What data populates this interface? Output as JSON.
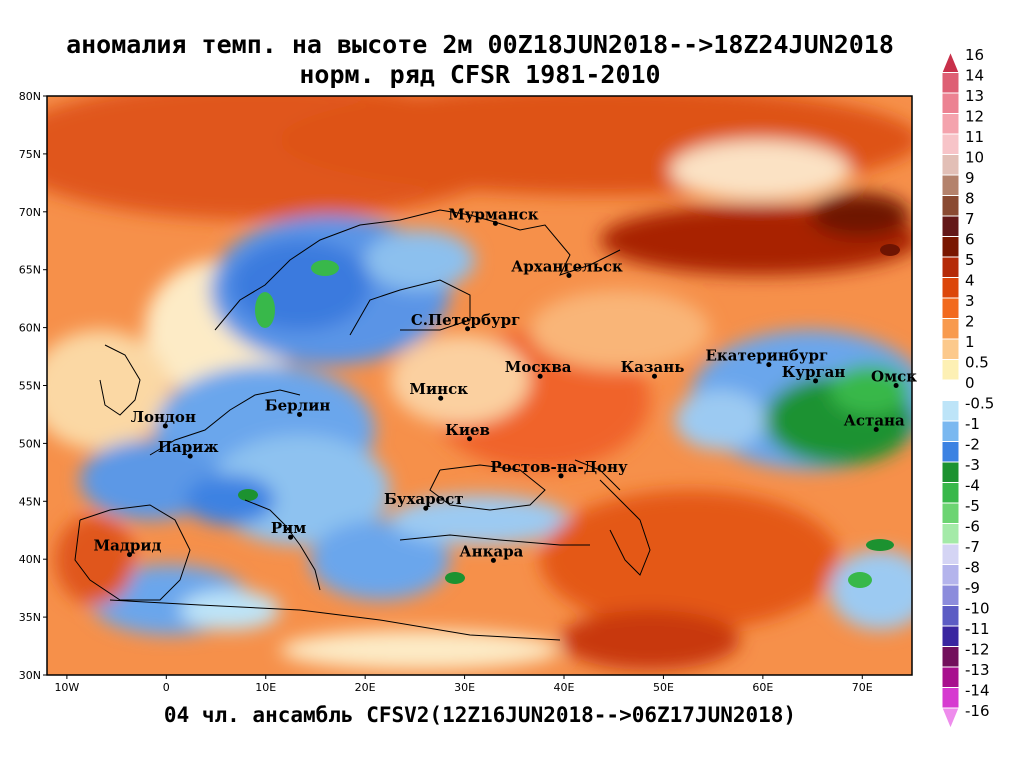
{
  "title_line1": "аномалия темп. на высоте 2м 00Z18JUN2018-->18Z24JUN2018",
  "title_line2": "норм. ряд CFSR 1981-2010",
  "footer": "04 чл. ансамбль CFSV2(12Z16JUN2018-->06Z17JUN2018)",
  "map": {
    "lon_range": [
      -12,
      75
    ],
    "lat_range": [
      30,
      80
    ],
    "lat_ticks": [
      "30N",
      "35N",
      "40N",
      "45N",
      "50N",
      "55N",
      "60N",
      "65N",
      "70N",
      "75N",
      "80N"
    ],
    "lon_ticks": [
      "10W",
      "0",
      "10E",
      "20E",
      "30E",
      "40E",
      "50E",
      "60E",
      "70E"
    ]
  },
  "cities": [
    {
      "name": "Мурманск",
      "lon": 33.1,
      "lat": 69.0
    },
    {
      "name": "Архангельск",
      "lon": 40.5,
      "lat": 64.5
    },
    {
      "name": "С.Петербург",
      "lon": 30.3,
      "lat": 59.9
    },
    {
      "name": "Москва",
      "lon": 37.6,
      "lat": 55.8
    },
    {
      "name": "Казань",
      "lon": 49.1,
      "lat": 55.8
    },
    {
      "name": "Екатеринбург",
      "lon": 60.6,
      "lat": 56.8
    },
    {
      "name": "Курган",
      "lon": 65.3,
      "lat": 55.4
    },
    {
      "name": "Омск",
      "lon": 73.4,
      "lat": 55.0
    },
    {
      "name": "Астана",
      "lon": 71.4,
      "lat": 51.2
    },
    {
      "name": "Минск",
      "lon": 27.6,
      "lat": 53.9
    },
    {
      "name": "Берлин",
      "lon": 13.4,
      "lat": 52.5
    },
    {
      "name": "Лондон",
      "lon": -0.1,
      "lat": 51.5
    },
    {
      "name": "Париж",
      "lon": 2.4,
      "lat": 48.9
    },
    {
      "name": "Киев",
      "lon": 30.5,
      "lat": 50.4
    },
    {
      "name": "Ростов-на-Дону",
      "lon": 39.7,
      "lat": 47.2
    },
    {
      "name": "Бухарест",
      "lon": 26.1,
      "lat": 44.4
    },
    {
      "name": "Рим",
      "lon": 12.5,
      "lat": 41.9
    },
    {
      "name": "Мадрид",
      "lon": -3.7,
      "lat": 40.4
    },
    {
      "name": "Анкара",
      "lon": 32.9,
      "lat": 39.9
    }
  ],
  "legend": {
    "levels": [
      "16",
      "14",
      "13",
      "12",
      "11",
      "10",
      "9",
      "8",
      "7",
      "6",
      "5",
      "4",
      "3",
      "2",
      "1",
      "0.5",
      "0",
      "-0.5",
      "-1",
      "-2",
      "-3",
      "-4",
      "-5",
      "-6",
      "-7",
      "-8",
      "-9",
      "-10",
      "-11",
      "-12",
      "-13",
      "-14",
      "-16"
    ],
    "colors": [
      "#c8304a",
      "#de5f74",
      "#ec8292",
      "#f4a3ad",
      "#f7c4c8",
      "#e2bfb6",
      "#b4826c",
      "#8a4a32",
      "#641818",
      "#7a1600",
      "#b52a08",
      "#dc460a",
      "#f26a1e",
      "#f89a4e",
      "#fcc98c",
      "#fdf0b4",
      "#ffffff",
      "#bde4f8",
      "#7ab8f0",
      "#3c82e2",
      "#1c9230",
      "#38b84a",
      "#6cd472",
      "#a4eaa8",
      "#d4d4f4",
      "#b4b4ec",
      "#8c8cdc",
      "#5c5cc4",
      "#3a26a0",
      "#72105c",
      "#a8108e",
      "#d63ad0",
      "#ee8cec"
    ]
  }
}
